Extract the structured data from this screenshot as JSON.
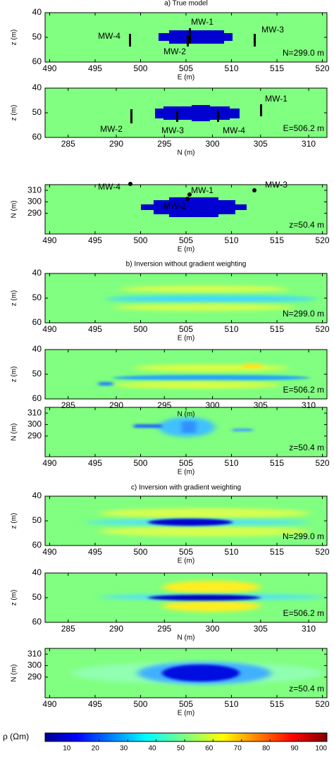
{
  "sections": [
    {
      "title": "a) True model",
      "panels": [
        {
          "xlabel": "E (m)",
          "ylabel": "z (m)",
          "xlim": [
            489.5,
            520.5
          ],
          "xticks": [
            490,
            495,
            500,
            505,
            510,
            515,
            520
          ],
          "ylim": [
            40,
            60
          ],
          "yticks": [
            40,
            50,
            60
          ],
          "y_inverted": true,
          "annotation": "N=299.0 m",
          "wells": [
            "MW-1",
            "MW-4",
            "MW-2",
            "MW-3"
          ]
        },
        {
          "xlabel": "N (m)",
          "ylabel": "z (m)",
          "xlim": [
            282.6,
            311.9
          ],
          "xticks": [
            285,
            290,
            295,
            300,
            305,
            310
          ],
          "ylim": [
            40,
            60
          ],
          "yticks": [
            40,
            50,
            60
          ],
          "y_inverted": true,
          "annotation": "E=506.2 m",
          "wells": [
            "MW-1",
            "MW-2",
            "MW-3",
            "MW-4"
          ]
        },
        {
          "xlabel": "E (m)",
          "ylabel": "N (m)",
          "xlim": [
            489.5,
            520.5
          ],
          "xticks": [
            490,
            495,
            500,
            505,
            510,
            515,
            520
          ],
          "ylim": [
            272,
            315
          ],
          "yticks": [
            290,
            300,
            310
          ],
          "y_inverted": false,
          "annotation": "z=50.4 m",
          "wells": [
            "MW-1",
            "MW-4",
            "MW-2",
            "MW-3"
          ]
        }
      ]
    },
    {
      "title": "b) Inversion without gradient weighting",
      "panels": [
        {
          "xlabel": "E (m)",
          "ylabel": "z (m)",
          "xlim": [
            489.5,
            520.5
          ],
          "xticks": [
            490,
            495,
            500,
            505,
            510,
            515,
            520
          ],
          "ylim": [
            40,
            60
          ],
          "yticks": [
            40,
            50,
            60
          ],
          "y_inverted": true,
          "annotation": "N=299.0 m"
        },
        {
          "xlabel": "N (m)",
          "ylabel": "z (m)",
          "xlim": [
            282.6,
            311.9
          ],
          "xticks": [
            285,
            290,
            295,
            300,
            305,
            310
          ],
          "ylim": [
            40,
            60
          ],
          "yticks": [
            40,
            50,
            60
          ],
          "y_inverted": true,
          "annotation": "E=506.2 m"
        },
        {
          "xlabel": "E (m)",
          "ylabel": "N (m)",
          "xlim": [
            489.5,
            520.5
          ],
          "xticks": [
            490,
            495,
            500,
            505,
            510,
            515,
            520
          ],
          "ylim": [
            272,
            315
          ],
          "yticks": [
            290,
            300,
            310
          ],
          "y_inverted": false,
          "annotation": "z=50.4 m"
        }
      ]
    },
    {
      "title": "c) Inversion with gradient weighting",
      "panels": [
        {
          "xlabel": "E (m)",
          "ylabel": "z (m)",
          "xlim": [
            489.5,
            520.5
          ],
          "xticks": [
            490,
            495,
            500,
            505,
            510,
            515,
            520
          ],
          "ylim": [
            40,
            60
          ],
          "yticks": [
            40,
            50,
            60
          ],
          "y_inverted": true,
          "annotation": "N=299.0 m"
        },
        {
          "xlabel": "N (m)",
          "ylabel": "z (m)",
          "xlim": [
            282.6,
            311.9
          ],
          "xticks": [
            285,
            290,
            295,
            300,
            305,
            310
          ],
          "ylim": [
            40,
            60
          ],
          "yticks": [
            40,
            50,
            60
          ],
          "y_inverted": true,
          "annotation": "E=506.2 m"
        },
        {
          "xlabel": "E (m)",
          "ylabel": "N (m)",
          "xlim": [
            489.5,
            520.5
          ],
          "xticks": [
            490,
            495,
            500,
            505,
            510,
            515,
            520
          ],
          "ylim": [
            272,
            315
          ],
          "yticks": [
            290,
            300,
            310
          ],
          "y_inverted": false,
          "annotation": "z=50.4 m"
        }
      ]
    }
  ],
  "colorbar": {
    "label": "ρ (Ωm)",
    "lim": [
      1,
      100
    ],
    "ticks": [
      10,
      20,
      30,
      40,
      50,
      60,
      70,
      80,
      90,
      100
    ]
  }
}
